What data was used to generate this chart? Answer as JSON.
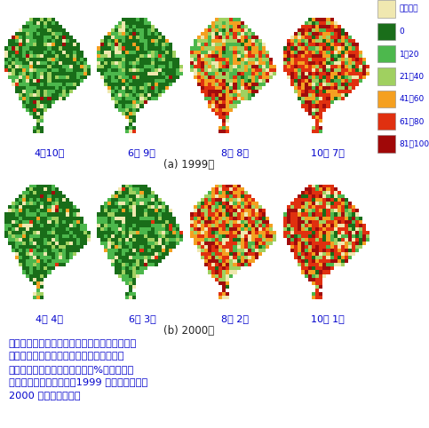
{
  "title_row1": "(a) 1999年",
  "title_row2": "(b) 2000年",
  "labels_row1": [
    "4月10日",
    "6月 9日",
    "8月 8日",
    "10月 7日"
  ],
  "labels_row2": [
    "4月 4日",
    "6月 3日",
    "8月 2日",
    "10月 1日"
  ],
  "legend_labels": [
    "水田なし",
    "0",
    "1－20",
    "21－40",
    "41－60",
    "61－80",
    "81－100"
  ],
  "legend_colors": [
    "#f0e8b0",
    "#1a6e1a",
    "#4db84d",
    "#a0d060",
    "#f5a020",
    "#e03010",
    "#a00808"
  ],
  "caption_lines": [
    "図４　作付時期・作付面積推定モデルより概定",
    "した水田作付面積率（各メッシュにおける",
    "［作付面積／水田面積］の値（%））の期別",
    "変化（メコン河下流域、1999 年（少雨年）と",
    "2000 年（多雨年））"
  ],
  "bg_color": "#ffffff",
  "text_color": "#0000cc",
  "fig_width": 4.83,
  "fig_height": 4.82,
  "dpi": 100
}
